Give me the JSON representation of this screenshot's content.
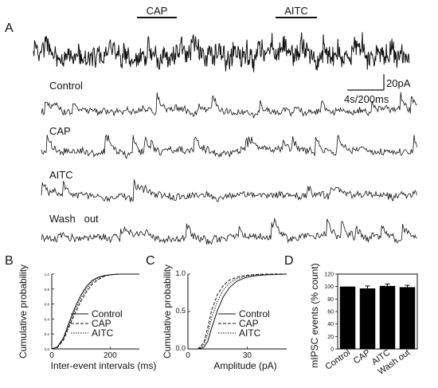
{
  "panels": {
    "A": "A",
    "B": "B",
    "C": "C",
    "D": "D"
  },
  "panel_a": {
    "bar_labels": [
      "CAP",
      "AITC"
    ],
    "trace_labels": [
      "Control",
      "CAP",
      "AITC",
      "Wash   out"
    ],
    "scale_bar": {
      "amplitude": "20pA",
      "time": "4s/200ms"
    }
  },
  "chart_data": [
    {
      "panel": "B",
      "type": "line",
      "xlabel": "Inter-event intervals (ms)",
      "ylabel": "Cumulative probability",
      "xlim": [
        0,
        300
      ],
      "ylim": [
        0,
        1.0
      ],
      "x_ticks": [
        "0",
        "200"
      ],
      "y_ticks": [
        "0.0",
        "0.2",
        "0.4",
        "0.6",
        "0.8",
        "1.0"
      ],
      "legend": "lower-right",
      "series": [
        {
          "name": "Control",
          "style": "solid",
          "x": [
            0,
            20,
            40,
            60,
            80,
            100,
            120,
            140,
            160,
            180,
            200,
            230,
            260,
            300
          ],
          "y": [
            0,
            0.03,
            0.15,
            0.36,
            0.56,
            0.72,
            0.84,
            0.92,
            0.96,
            0.98,
            0.99,
            1.0,
            1.0,
            1.0
          ]
        },
        {
          "name": "CAP",
          "style": "dashed",
          "x": [
            0,
            20,
            40,
            60,
            80,
            100,
            120,
            140,
            160,
            180,
            200,
            230,
            260,
            300
          ],
          "y": [
            0,
            0.02,
            0.12,
            0.3,
            0.48,
            0.64,
            0.77,
            0.87,
            0.93,
            0.97,
            0.99,
            1.0,
            1.0,
            1.0
          ]
        },
        {
          "name": "AITC",
          "style": "dotted",
          "x": [
            0,
            20,
            40,
            60,
            80,
            100,
            120,
            140,
            160,
            180,
            200,
            230,
            260,
            300
          ],
          "y": [
            0,
            0.025,
            0.13,
            0.33,
            0.52,
            0.68,
            0.81,
            0.9,
            0.95,
            0.98,
            0.99,
            1.0,
            1.0,
            1.0
          ]
        }
      ]
    },
    {
      "panel": "C",
      "type": "line",
      "xlabel": "Amplitude (pA)",
      "ylabel": "Cumulative probability",
      "xlim": [
        0,
        50
      ],
      "ylim": [
        0,
        1.0
      ],
      "x_ticks": [
        "0",
        "30"
      ],
      "y_ticks": [
        "0.0",
        "0.5",
        "1.0"
      ],
      "legend": "lower-right",
      "series": [
        {
          "name": "Control",
          "style": "solid",
          "x": [
            0,
            5,
            8,
            10,
            12,
            15,
            18,
            21,
            25,
            30,
            35,
            40,
            50
          ],
          "y": [
            0,
            0.0,
            0.02,
            0.1,
            0.28,
            0.52,
            0.7,
            0.82,
            0.91,
            0.96,
            0.98,
            0.99,
            1.0
          ]
        },
        {
          "name": "CAP",
          "style": "dashed",
          "x": [
            0,
            5,
            8,
            10,
            12,
            15,
            18,
            21,
            25,
            30,
            35,
            40,
            50
          ],
          "y": [
            0,
            0.0,
            0.08,
            0.28,
            0.52,
            0.73,
            0.85,
            0.92,
            0.96,
            0.985,
            0.995,
            1.0,
            1.0
          ]
        },
        {
          "name": "AITC",
          "style": "dotted",
          "x": [
            0,
            5,
            8,
            10,
            12,
            15,
            18,
            21,
            25,
            30,
            35,
            40,
            50
          ],
          "y": [
            0,
            0.0,
            0.05,
            0.2,
            0.42,
            0.64,
            0.79,
            0.88,
            0.94,
            0.975,
            0.99,
            0.995,
            1.0
          ]
        }
      ]
    },
    {
      "panel": "D",
      "type": "bar",
      "ylabel": "mIPSC events  (% count)",
      "ylim": [
        0,
        120
      ],
      "y_ticks": [
        "0",
        "20",
        "40",
        "60",
        "80",
        "100",
        "120"
      ],
      "categories": [
        "Control",
        "CAP",
        "AITC",
        "Wash out"
      ],
      "values": [
        100,
        97,
        101,
        99
      ],
      "errors": [
        0,
        4,
        3,
        3
      ]
    }
  ]
}
